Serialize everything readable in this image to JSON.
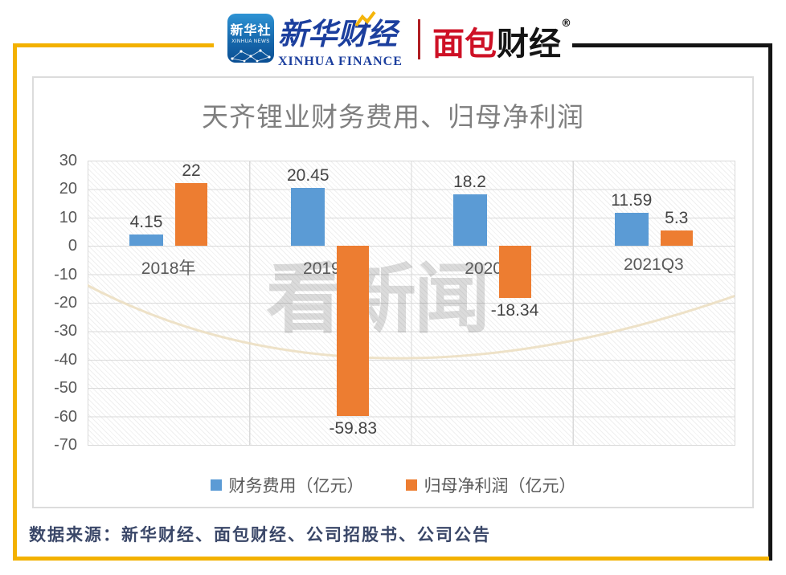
{
  "header": {
    "xinhua_app": {
      "name": "新华社",
      "sub": "XINHUA NEWS"
    },
    "xinhua_finance": {
      "cn": "新华财经",
      "en": "XINHUA FINANCE"
    },
    "bread_finance": {
      "cn_red": "面包",
      "cn_black": "财经",
      "reg": "®"
    }
  },
  "chart_data": {
    "type": "bar",
    "title": "天齐锂业财务费用、归母净利润",
    "categories": [
      "2018年",
      "2019年",
      "2020年",
      "2021Q3"
    ],
    "series": [
      {
        "name": "财务费用（亿元）",
        "color": "#5B9BD5",
        "values": [
          4.15,
          20.45,
          18.2,
          11.59
        ],
        "labels": [
          "4.15",
          "20.45",
          "18.2",
          "11.59"
        ]
      },
      {
        "name": "归母净利润（亿元）",
        "color": "#ED7D31",
        "values": [
          22,
          -59.83,
          -18.34,
          5.3
        ],
        "labels": [
          "22",
          "-59.83",
          "-18.34",
          "5.3"
        ]
      }
    ],
    "ylim": [
      -70,
      30
    ],
    "y_ticks": [
      30,
      20,
      10,
      0,
      -10,
      -20,
      -30,
      -40,
      -50,
      -60,
      -70
    ],
    "grid": true,
    "legend_position": "bottom",
    "plot_pattern": "diagonal-hatch"
  },
  "watermark": {
    "text": "看新闻"
  },
  "footer": {
    "source": "数据来源：新华财经、面包财经、公司招股书、公司公告"
  },
  "colors": {
    "bar_blue": "#5B9BD5",
    "bar_orange": "#ED7D31",
    "frame_gold": "#F3B100",
    "frame_black": "#141414",
    "title_gray": "#7F7F7F",
    "axis_gray": "#595959",
    "gridline": "#D9D9D9",
    "source_navy": "#3A4768",
    "xinhua_blue": "#1C3F9E",
    "bread_red": "#CE1126"
  }
}
